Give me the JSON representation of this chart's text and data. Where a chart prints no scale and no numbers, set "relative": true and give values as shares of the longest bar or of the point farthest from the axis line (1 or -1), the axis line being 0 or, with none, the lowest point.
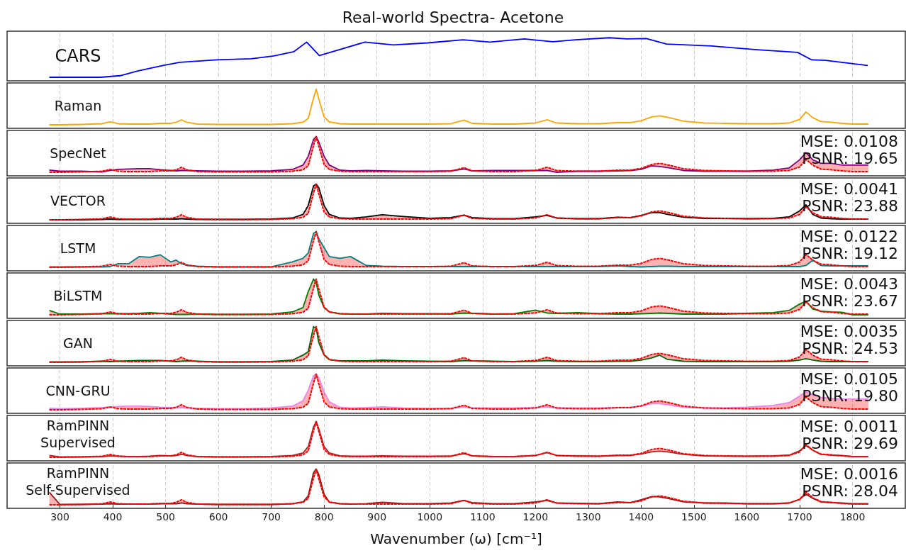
{
  "chart_data": [
    {
      "type": "line",
      "title": "Real-world Spectra- Acetone",
      "relative": true,
      "xlim": [
        200,
        1900
      ],
      "xticks": [
        300,
        400,
        500,
        600,
        700,
        800,
        900,
        1000,
        1100,
        1200,
        1300,
        1400,
        1500,
        1600,
        1700,
        1800
      ],
      "tick_labels": false,
      "grid": "x",
      "annotations": [
        "CARS"
      ],
      "x": [
        280,
        377,
        414,
        447,
        495,
        527,
        597,
        662,
        705,
        743,
        767,
        791,
        824,
        877,
        931,
        996,
        1063,
        1114,
        1179,
        1233,
        1276,
        1340,
        1373,
        1410,
        1448,
        1534,
        1615,
        1696,
        1723,
        1749,
        1829
      ],
      "series": [
        {
          "color": "#0000ff",
          "line_style": "solid",
          "values": [
            0,
            0,
            0.04,
            0.16,
            0.3,
            0.38,
            0.44,
            0.47,
            0.54,
            0.65,
            0.89,
            0.55,
            0.68,
            0.89,
            0.82,
            0.87,
            0.95,
            0.89,
            0.97,
            0.9,
            0.95,
            1,
            0.97,
            0.98,
            0.84,
            0.79,
            0.7,
            0.63,
            0.44,
            0.43,
            0.3
          ]
        }
      ]
    },
    {
      "type": "line",
      "relative": true,
      "xlim": [
        200,
        1900
      ],
      "xticks": [
        300,
        400,
        500,
        600,
        700,
        800,
        900,
        1000,
        1100,
        1200,
        1300,
        1400,
        1500,
        1600,
        1700,
        1800
      ],
      "tick_labels": false,
      "grid": "x",
      "annotations": [
        "Raman"
      ],
      "x": [
        280,
        300,
        340,
        380,
        395,
        410,
        430,
        450,
        470,
        490,
        510,
        520,
        530,
        540,
        560,
        600,
        650,
        700,
        740,
        760,
        770,
        780,
        785,
        790,
        800,
        810,
        830,
        850,
        880,
        910,
        950,
        1000,
        1040,
        1065,
        1080,
        1120,
        1160,
        1200,
        1222,
        1240,
        1280,
        1320,
        1355,
        1380,
        1400,
        1420,
        1435,
        1450,
        1480,
        1520,
        1560,
        1600,
        1650,
        1680,
        1700,
        1712,
        1725,
        1740,
        1760,
        1780,
        1800,
        1830
      ],
      "series": [
        {
          "color": "#ffa500",
          "line_style": "solid",
          "values": [
            0,
            0,
            0.01,
            0.03,
            0.08,
            0.03,
            0.02,
            0.02,
            0.02,
            0.04,
            0.04,
            0.07,
            0.14,
            0.07,
            0.02,
            0.01,
            0.01,
            0.01,
            0.03,
            0.07,
            0.18,
            0.75,
            1,
            0.72,
            0.22,
            0.08,
            0.03,
            0.02,
            0.02,
            0.02,
            0.02,
            0.02,
            0.03,
            0.13,
            0.04,
            0.02,
            0.02,
            0.05,
            0.14,
            0.05,
            0.03,
            0.03,
            0.06,
            0.06,
            0.11,
            0.22,
            0.25,
            0.21,
            0.1,
            0.05,
            0.04,
            0.03,
            0.03,
            0.05,
            0.15,
            0.36,
            0.2,
            0.09,
            0.07,
            0.04,
            0.02,
            0.02
          ]
        }
      ]
    },
    {
      "type": "line",
      "relative": true,
      "xlim": [
        200,
        1900
      ],
      "xticks": [
        300,
        400,
        500,
        600,
        700,
        800,
        900,
        1000,
        1100,
        1200,
        1300,
        1400,
        1500,
        1600,
        1700,
        1800
      ],
      "tick_labels": false,
      "grid": "x",
      "annotations": [
        "SpecNet",
        "MSE: 0.0108",
        "PSNR: 19.65"
      ],
      "x": [
        280,
        300,
        340,
        380,
        395,
        410,
        430,
        450,
        470,
        490,
        510,
        520,
        530,
        540,
        560,
        600,
        650,
        700,
        740,
        760,
        770,
        780,
        785,
        790,
        800,
        810,
        830,
        850,
        880,
        910,
        950,
        1000,
        1040,
        1065,
        1080,
        1120,
        1160,
        1200,
        1222,
        1240,
        1280,
        1320,
        1355,
        1380,
        1400,
        1420,
        1435,
        1450,
        1480,
        1520,
        1560,
        1600,
        1650,
        1680,
        1700,
        1712,
        1725,
        1740,
        1760,
        1780,
        1800,
        1830
      ],
      "series": [
        {
          "color": "#800080",
          "line_style": "solid",
          "values": [
            0.06,
            0.03,
            0.03,
            0.01,
            0.05,
            0.08,
            0.09,
            0.1,
            0.1,
            0.07,
            0.05,
            0.04,
            0.05,
            0.05,
            0.04,
            0.03,
            0.03,
            0.04,
            0.08,
            0.2,
            0.45,
            0.92,
            1,
            0.85,
            0.45,
            0.2,
            0.06,
            0.04,
            0.05,
            0.04,
            0.03,
            0.03,
            0.04,
            0.09,
            0.04,
            0.05,
            0.05,
            0.05,
            0.05,
            0,
            0.03,
            0.03,
            0.04,
            0.05,
            0.08,
            0.18,
            0.16,
            0.13,
            0.05,
            0.03,
            0.03,
            0.03,
            0.06,
            0.12,
            0.35,
            0.55,
            0.35,
            0.25,
            0.25,
            0.2,
            0.2,
            0.2
          ]
        },
        {
          "color": "#ff0000",
          "line_style": "dashed",
          "values": [
            0,
            0,
            0.01,
            0.03,
            0.08,
            0.03,
            0.02,
            0.02,
            0.02,
            0.04,
            0.04,
            0.07,
            0.14,
            0.07,
            0.02,
            0.01,
            0.01,
            0.01,
            0.03,
            0.07,
            0.18,
            0.75,
            1,
            0.72,
            0.22,
            0.08,
            0.03,
            0.02,
            0.02,
            0.02,
            0.02,
            0.02,
            0.03,
            0.13,
            0.04,
            0.02,
            0.02,
            0.05,
            0.14,
            0.05,
            0.03,
            0.03,
            0.06,
            0.06,
            0.11,
            0.22,
            0.25,
            0.21,
            0.1,
            0.05,
            0.04,
            0.03,
            0.03,
            0.05,
            0.15,
            0.36,
            0.2,
            0.09,
            0.07,
            0.04,
            0.02,
            0.02
          ]
        }
      ]
    },
    {
      "type": "line",
      "relative": true,
      "xlim": [
        200,
        1900
      ],
      "xticks": [
        300,
        400,
        500,
        600,
        700,
        800,
        900,
        1000,
        1100,
        1200,
        1300,
        1400,
        1500,
        1600,
        1700,
        1800
      ],
      "tick_labels": false,
      "grid": "x",
      "annotations": [
        "VECTOR",
        "MSE: 0.0041",
        "PSNR: 23.88"
      ],
      "x": [
        280,
        300,
        340,
        380,
        395,
        410,
        430,
        450,
        470,
        490,
        510,
        520,
        530,
        540,
        560,
        600,
        650,
        700,
        740,
        760,
        770,
        780,
        785,
        790,
        800,
        810,
        830,
        850,
        880,
        910,
        950,
        1000,
        1040,
        1065,
        1080,
        1120,
        1160,
        1200,
        1222,
        1240,
        1280,
        1320,
        1355,
        1380,
        1400,
        1420,
        1435,
        1450,
        1480,
        1520,
        1560,
        1600,
        1650,
        1680,
        1700,
        1712,
        1725,
        1740,
        1760,
        1780,
        1800,
        1830
      ],
      "series": [
        {
          "color": "#000000",
          "line_style": "solid",
          "values": [
            0,
            0,
            0,
            0.01,
            0.02,
            0.01,
            0.01,
            0.01,
            0.01,
            0.02,
            0.02,
            0.02,
            0.03,
            0.02,
            0.01,
            0.01,
            0.01,
            0.02,
            0.05,
            0.15,
            0.4,
            0.95,
            1,
            0.9,
            0.4,
            0.15,
            0.05,
            0.04,
            0.08,
            0.14,
            0.09,
            0.04,
            0.06,
            0.13,
            0.06,
            0.03,
            0.03,
            0.08,
            0.12,
            0.05,
            0.03,
            0.03,
            0.07,
            0.06,
            0.12,
            0.2,
            0.2,
            0.15,
            0.07,
            0.04,
            0.04,
            0.03,
            0.04,
            0.08,
            0.25,
            0.42,
            0.15,
            0.05,
            0.03,
            0.02,
            0.02,
            0.02
          ]
        },
        {
          "color": "#ff0000",
          "line_style": "dashed",
          "values": [
            0,
            0,
            0.01,
            0.03,
            0.08,
            0.03,
            0.02,
            0.02,
            0.02,
            0.04,
            0.04,
            0.07,
            0.14,
            0.07,
            0.02,
            0.01,
            0.01,
            0.01,
            0.03,
            0.07,
            0.18,
            0.75,
            1,
            0.72,
            0.22,
            0.08,
            0.03,
            0.02,
            0.02,
            0.02,
            0.02,
            0.02,
            0.03,
            0.13,
            0.04,
            0.02,
            0.02,
            0.05,
            0.14,
            0.05,
            0.03,
            0.03,
            0.06,
            0.06,
            0.11,
            0.22,
            0.25,
            0.21,
            0.1,
            0.05,
            0.04,
            0.03,
            0.03,
            0.05,
            0.15,
            0.36,
            0.2,
            0.09,
            0.07,
            0.04,
            0.02,
            0.02
          ]
        }
      ]
    },
    {
      "type": "line",
      "relative": true,
      "xlim": [
        200,
        1900
      ],
      "xticks": [
        300,
        400,
        500,
        600,
        700,
        800,
        900,
        1000,
        1100,
        1200,
        1300,
        1400,
        1500,
        1600,
        1700,
        1800
      ],
      "tick_labels": false,
      "grid": "x",
      "annotations": [
        "LSTM",
        "MSE: 0.0122",
        "PSNR: 19.12"
      ],
      "x": [
        280,
        300,
        340,
        380,
        395,
        410,
        430,
        450,
        470,
        490,
        510,
        520,
        530,
        540,
        560,
        600,
        650,
        700,
        740,
        760,
        770,
        780,
        785,
        790,
        800,
        810,
        830,
        850,
        880,
        910,
        950,
        1000,
        1040,
        1065,
        1080,
        1120,
        1160,
        1200,
        1222,
        1240,
        1280,
        1320,
        1355,
        1380,
        1400,
        1420,
        1435,
        1450,
        1480,
        1520,
        1560,
        1600,
        1650,
        1680,
        1700,
        1712,
        1725,
        1740,
        1760,
        1780,
        1800,
        1830
      ],
      "series": [
        {
          "color": "#008080",
          "line_style": "solid",
          "values": [
            0.01,
            0.01,
            0.01,
            0.01,
            0.02,
            0.1,
            0.1,
            0.3,
            0.28,
            0.35,
            0.15,
            0.2,
            0.1,
            0.05,
            0.03,
            0.01,
            0.01,
            0.01,
            0.15,
            0.25,
            0.4,
            0.95,
            1,
            0.8,
            0.55,
            0.3,
            0.25,
            0.3,
            0.05,
            0.03,
            0.02,
            0.02,
            0.02,
            0.02,
            0.02,
            0.02,
            0.02,
            0.02,
            0.02,
            0.02,
            0.02,
            0.02,
            0.04,
            0.02,
            0.01,
            0.02,
            0.03,
            0.03,
            0.02,
            0.02,
            0.02,
            0.02,
            0.02,
            0.02,
            0.02,
            0.05,
            0.2,
            0.05,
            0.04,
            0.04,
            0.04,
            0.04
          ]
        },
        {
          "color": "#ff0000",
          "line_style": "dashed",
          "values": [
            0,
            0,
            0.01,
            0.03,
            0.08,
            0.03,
            0.02,
            0.02,
            0.02,
            0.04,
            0.04,
            0.07,
            0.14,
            0.07,
            0.02,
            0.01,
            0.01,
            0.01,
            0.03,
            0.07,
            0.18,
            0.75,
            1,
            0.72,
            0.22,
            0.08,
            0.03,
            0.02,
            0.02,
            0.02,
            0.02,
            0.02,
            0.03,
            0.13,
            0.04,
            0.02,
            0.02,
            0.05,
            0.14,
            0.05,
            0.03,
            0.03,
            0.06,
            0.06,
            0.11,
            0.22,
            0.25,
            0.21,
            0.1,
            0.05,
            0.04,
            0.03,
            0.03,
            0.05,
            0.15,
            0.36,
            0.2,
            0.09,
            0.07,
            0.04,
            0.02,
            0.02
          ]
        }
      ]
    },
    {
      "type": "line",
      "relative": true,
      "xlim": [
        200,
        1900
      ],
      "xticks": [
        300,
        400,
        500,
        600,
        700,
        800,
        900,
        1000,
        1100,
        1200,
        1300,
        1400,
        1500,
        1600,
        1700,
        1800
      ],
      "tick_labels": false,
      "grid": "x",
      "annotations": [
        "BiLSTM",
        "MSE: 0.0043",
        "PSNR: 23.67"
      ],
      "x": [
        280,
        300,
        340,
        380,
        395,
        410,
        430,
        450,
        470,
        490,
        510,
        520,
        530,
        540,
        560,
        600,
        650,
        700,
        740,
        760,
        770,
        780,
        785,
        790,
        800,
        810,
        830,
        850,
        880,
        910,
        950,
        1000,
        1040,
        1065,
        1080,
        1120,
        1160,
        1200,
        1222,
        1240,
        1280,
        1320,
        1355,
        1380,
        1400,
        1420,
        1435,
        1450,
        1480,
        1520,
        1560,
        1600,
        1650,
        1680,
        1700,
        1712,
        1725,
        1740,
        1760,
        1780,
        1800,
        1830
      ],
      "series": [
        {
          "color": "#008000",
          "line_style": "solid",
          "values": [
            0.12,
            0.02,
            0.02,
            0.03,
            0.03,
            0.03,
            0.03,
            0.04,
            0.06,
            0.04,
            0.02,
            0.01,
            0.01,
            0.01,
            0.02,
            0.01,
            0.01,
            0.02,
            0.08,
            0.2,
            0.65,
            1,
            0.9,
            0.55,
            0.2,
            0.08,
            0.03,
            0.02,
            0.02,
            0.04,
            0.03,
            0.03,
            0.02,
            0.05,
            0.04,
            0.02,
            0.03,
            0.13,
            0.05,
            0.04,
            0.06,
            0.03,
            0.02,
            0.02,
            0.03,
            0.04,
            0.05,
            0.04,
            0.02,
            0.02,
            0.02,
            0.04,
            0.06,
            0.12,
            0.3,
            0.38,
            0.16,
            0.1,
            0.08,
            0.07,
            0,
            0
          ]
        },
        {
          "color": "#ff0000",
          "line_style": "dashed",
          "values": [
            0,
            0,
            0.01,
            0.03,
            0.08,
            0.03,
            0.02,
            0.02,
            0.02,
            0.04,
            0.04,
            0.07,
            0.14,
            0.07,
            0.02,
            0.01,
            0.01,
            0.01,
            0.03,
            0.07,
            0.18,
            0.75,
            1,
            0.72,
            0.22,
            0.08,
            0.03,
            0.02,
            0.02,
            0.02,
            0.02,
            0.02,
            0.03,
            0.13,
            0.04,
            0.02,
            0.02,
            0.05,
            0.14,
            0.05,
            0.03,
            0.03,
            0.06,
            0.06,
            0.11,
            0.22,
            0.25,
            0.21,
            0.1,
            0.05,
            0.04,
            0.03,
            0.03,
            0.05,
            0.15,
            0.36,
            0.2,
            0.09,
            0.07,
            0.04,
            0.02,
            0.02
          ]
        }
      ]
    },
    {
      "type": "line",
      "relative": true,
      "xlim": [
        200,
        1900
      ],
      "xticks": [
        300,
        400,
        500,
        600,
        700,
        800,
        900,
        1000,
        1100,
        1200,
        1300,
        1400,
        1500,
        1600,
        1700,
        1800
      ],
      "tick_labels": false,
      "grid": "x",
      "annotations": [
        "GAN",
        "MSE: 0.0035",
        "PSNR: 24.53"
      ],
      "x": [
        280,
        300,
        340,
        380,
        395,
        410,
        430,
        450,
        470,
        490,
        510,
        520,
        530,
        540,
        560,
        600,
        650,
        700,
        740,
        760,
        770,
        780,
        785,
        790,
        800,
        810,
        830,
        850,
        880,
        910,
        950,
        1000,
        1040,
        1065,
        1080,
        1120,
        1160,
        1200,
        1222,
        1240,
        1280,
        1320,
        1355,
        1380,
        1400,
        1420,
        1435,
        1450,
        1480,
        1520,
        1560,
        1600,
        1650,
        1680,
        1700,
        1712,
        1725,
        1740,
        1760,
        1780,
        1800,
        1830
      ],
      "series": [
        {
          "color": "#006400",
          "line_style": "solid",
          "values": [
            0.01,
            0.01,
            0.01,
            0.03,
            0.02,
            0.03,
            0.04,
            0.05,
            0.05,
            0.05,
            0.03,
            0.02,
            0.03,
            0.04,
            0.03,
            0.01,
            0.01,
            0.02,
            0.06,
            0.2,
            0.3,
            1,
            0.95,
            0.55,
            0.2,
            0.07,
            0.04,
            0.04,
            0.04,
            0.06,
            0.04,
            0.03,
            0.02,
            0.05,
            0.04,
            0.03,
            0.02,
            0.03,
            0.05,
            0.03,
            0.02,
            0.02,
            0.03,
            0.03,
            0.06,
            0.12,
            0.2,
            0.08,
            0.03,
            0.02,
            0.02,
            0.02,
            0.02,
            0.03,
            0.06,
            0.1,
            0.06,
            0.03,
            0.02,
            0.02,
            0.02,
            0.02
          ]
        },
        {
          "color": "#ff0000",
          "line_style": "dashed",
          "values": [
            0,
            0,
            0.01,
            0.03,
            0.08,
            0.03,
            0.02,
            0.02,
            0.02,
            0.04,
            0.04,
            0.07,
            0.14,
            0.07,
            0.02,
            0.01,
            0.01,
            0.01,
            0.03,
            0.07,
            0.18,
            0.75,
            1,
            0.72,
            0.22,
            0.08,
            0.03,
            0.02,
            0.02,
            0.02,
            0.02,
            0.02,
            0.03,
            0.13,
            0.04,
            0.02,
            0.02,
            0.05,
            0.14,
            0.05,
            0.03,
            0.03,
            0.06,
            0.06,
            0.11,
            0.22,
            0.25,
            0.21,
            0.1,
            0.05,
            0.04,
            0.03,
            0.03,
            0.05,
            0.15,
            0.36,
            0.2,
            0.09,
            0.07,
            0.04,
            0.02,
            0.02
          ]
        }
      ]
    },
    {
      "type": "line",
      "relative": true,
      "xlim": [
        200,
        1900
      ],
      "xticks": [
        300,
        400,
        500,
        600,
        700,
        800,
        900,
        1000,
        1100,
        1200,
        1300,
        1400,
        1500,
        1600,
        1700,
        1800
      ],
      "tick_labels": false,
      "grid": "x",
      "annotations": [
        "CNN-GRU",
        "MSE: 0.0105",
        "PSNR: 19.80"
      ],
      "x": [
        280,
        300,
        340,
        380,
        395,
        410,
        430,
        450,
        470,
        490,
        510,
        520,
        530,
        540,
        560,
        600,
        650,
        700,
        740,
        760,
        770,
        780,
        785,
        790,
        800,
        810,
        830,
        850,
        880,
        910,
        950,
        1000,
        1040,
        1065,
        1080,
        1120,
        1160,
        1200,
        1222,
        1240,
        1280,
        1320,
        1355,
        1380,
        1400,
        1420,
        1435,
        1450,
        1480,
        1520,
        1560,
        1600,
        1650,
        1680,
        1700,
        1712,
        1725,
        1740,
        1760,
        1780,
        1800,
        1830
      ],
      "series": [
        {
          "color": "#ee82ee",
          "line_style": "solid",
          "values": [
            0.04,
            0.03,
            0.04,
            0.06,
            0.08,
            0.09,
            0.1,
            0.1,
            0.09,
            0.07,
            0.06,
            0.05,
            0.06,
            0.05,
            0.04,
            0.03,
            0.03,
            0.05,
            0.1,
            0.25,
            0.55,
            0.95,
            1,
            0.9,
            0.5,
            0.22,
            0.07,
            0.05,
            0.06,
            0.08,
            0.05,
            0.04,
            0.04,
            0.08,
            0.05,
            0.05,
            0.05,
            0.06,
            0.08,
            0.05,
            0.05,
            0.05,
            0.06,
            0.07,
            0.1,
            0.17,
            0.17,
            0.14,
            0.07,
            0.05,
            0.05,
            0.07,
            0.12,
            0.2,
            0.38,
            0.5,
            0.42,
            0.35,
            0.32,
            0.3,
            0.3,
            0.3
          ]
        },
        {
          "color": "#ff0000",
          "line_style": "dashed",
          "values": [
            0,
            0,
            0.01,
            0.03,
            0.08,
            0.03,
            0.02,
            0.02,
            0.02,
            0.04,
            0.04,
            0.07,
            0.14,
            0.07,
            0.02,
            0.01,
            0.01,
            0.01,
            0.03,
            0.07,
            0.18,
            0.75,
            1,
            0.72,
            0.22,
            0.08,
            0.03,
            0.02,
            0.02,
            0.02,
            0.02,
            0.02,
            0.03,
            0.13,
            0.04,
            0.02,
            0.02,
            0.05,
            0.14,
            0.05,
            0.03,
            0.03,
            0.06,
            0.06,
            0.11,
            0.22,
            0.25,
            0.21,
            0.1,
            0.05,
            0.04,
            0.03,
            0.03,
            0.05,
            0.15,
            0.36,
            0.2,
            0.09,
            0.07,
            0.04,
            0.02,
            0.02
          ]
        }
      ]
    },
    {
      "type": "line",
      "relative": true,
      "xlim": [
        200,
        1900
      ],
      "xticks": [
        300,
        400,
        500,
        600,
        700,
        800,
        900,
        1000,
        1100,
        1200,
        1300,
        1400,
        1500,
        1600,
        1700,
        1800
      ],
      "tick_labels": false,
      "grid": "x",
      "annotations": [
        "RamPINN\nSupervised",
        "MSE: 0.0011",
        "PSNR: 29.69"
      ],
      "x": [
        280,
        300,
        340,
        380,
        395,
        410,
        430,
        450,
        470,
        490,
        510,
        520,
        530,
        540,
        560,
        600,
        650,
        700,
        740,
        760,
        770,
        780,
        785,
        790,
        800,
        810,
        830,
        850,
        880,
        910,
        950,
        1000,
        1040,
        1065,
        1080,
        1120,
        1160,
        1200,
        1222,
        1240,
        1280,
        1320,
        1355,
        1380,
        1400,
        1420,
        1435,
        1450,
        1480,
        1520,
        1560,
        1600,
        1650,
        1680,
        1700,
        1712,
        1725,
        1740,
        1760,
        1780,
        1800,
        1830
      ],
      "series": [
        {
          "color": "#a52a2a",
          "line_style": "solid",
          "values": [
            0.05,
            0.01,
            0.01,
            0.02,
            0.04,
            0.03,
            0.02,
            0.02,
            0.03,
            0.05,
            0.04,
            0.05,
            0.08,
            0.05,
            0.02,
            0.01,
            0.01,
            0.02,
            0.05,
            0.12,
            0.3,
            0.85,
            1,
            0.8,
            0.3,
            0.12,
            0.04,
            0.03,
            0.03,
            0.04,
            0.03,
            0.03,
            0.03,
            0.1,
            0.04,
            0.02,
            0.02,
            0.05,
            0.13,
            0.05,
            0.04,
            0.03,
            0.05,
            0.05,
            0.09,
            0.15,
            0.17,
            0.15,
            0.08,
            0.04,
            0.03,
            0.03,
            0.04,
            0.06,
            0.18,
            0.33,
            0.2,
            0.08,
            0.06,
            0.05,
            0.02,
            0.02
          ]
        },
        {
          "color": "#ff0000",
          "line_style": "dashed",
          "values": [
            0,
            0,
            0.01,
            0.03,
            0.08,
            0.03,
            0.02,
            0.02,
            0.02,
            0.04,
            0.04,
            0.07,
            0.14,
            0.07,
            0.02,
            0.01,
            0.01,
            0.01,
            0.03,
            0.07,
            0.18,
            0.75,
            1,
            0.72,
            0.22,
            0.08,
            0.03,
            0.02,
            0.02,
            0.02,
            0.02,
            0.02,
            0.03,
            0.13,
            0.04,
            0.02,
            0.02,
            0.05,
            0.14,
            0.05,
            0.03,
            0.03,
            0.06,
            0.06,
            0.11,
            0.22,
            0.25,
            0.21,
            0.1,
            0.05,
            0.04,
            0.03,
            0.03,
            0.05,
            0.15,
            0.36,
            0.2,
            0.09,
            0.07,
            0.04,
            0.02,
            0.02
          ]
        }
      ]
    },
    {
      "type": "line",
      "relative": true,
      "xlim": [
        200,
        1900
      ],
      "xticks": [
        300,
        400,
        500,
        600,
        700,
        800,
        900,
        1000,
        1100,
        1200,
        1300,
        1400,
        1500,
        1600,
        1700,
        1800
      ],
      "tick_labels": "x",
      "grid": "x",
      "xlabel": "Wavenumber (ω) [cm⁻¹]",
      "annotations": [
        "RamPINN\nSelf-Supervised",
        "MSE: 0.0016",
        "PSNR: 28.04"
      ],
      "x": [
        280,
        300,
        340,
        380,
        395,
        410,
        430,
        450,
        470,
        490,
        510,
        520,
        530,
        540,
        560,
        600,
        650,
        700,
        740,
        760,
        770,
        780,
        785,
        790,
        800,
        810,
        830,
        850,
        880,
        910,
        950,
        1000,
        1040,
        1065,
        1080,
        1120,
        1160,
        1200,
        1222,
        1240,
        1280,
        1320,
        1355,
        1380,
        1400,
        1420,
        1435,
        1450,
        1480,
        1520,
        1560,
        1600,
        1650,
        1680,
        1700,
        1712,
        1725,
        1740,
        1760,
        1780,
        1800,
        1830
      ],
      "series": [
        {
          "color": "#8b1a1a",
          "line_style": "solid",
          "values": [
            0.35,
            0.01,
            0.01,
            0.02,
            0.03,
            0.02,
            0.02,
            0.02,
            0.02,
            0.03,
            0.03,
            0.03,
            0.05,
            0.03,
            0.02,
            0.01,
            0.01,
            0.01,
            0.03,
            0.08,
            0.25,
            0.9,
            1,
            0.85,
            0.3,
            0.07,
            0.03,
            0.02,
            0.03,
            0.07,
            0.03,
            0.03,
            0.05,
            0.12,
            0.06,
            0.03,
            0.03,
            0.08,
            0.12,
            0.05,
            0.04,
            0.03,
            0.08,
            0.06,
            0.14,
            0.23,
            0.22,
            0.18,
            0.08,
            0.05,
            0.05,
            0.03,
            0.03,
            0.05,
            0.15,
            0.3,
            0.18,
            0.08,
            0.06,
            0.05,
            0.03,
            0.03
          ]
        },
        {
          "color": "#ff0000",
          "line_style": "dashed",
          "values": [
            0,
            0,
            0.01,
            0.03,
            0.08,
            0.03,
            0.02,
            0.02,
            0.02,
            0.04,
            0.04,
            0.07,
            0.14,
            0.07,
            0.02,
            0.01,
            0.01,
            0.01,
            0.03,
            0.07,
            0.18,
            0.75,
            1,
            0.72,
            0.22,
            0.08,
            0.03,
            0.02,
            0.02,
            0.02,
            0.02,
            0.02,
            0.03,
            0.13,
            0.04,
            0.02,
            0.02,
            0.05,
            0.14,
            0.05,
            0.03,
            0.03,
            0.06,
            0.06,
            0.11,
            0.22,
            0.25,
            0.21,
            0.1,
            0.05,
            0.04,
            0.03,
            0.03,
            0.05,
            0.15,
            0.36,
            0.2,
            0.09,
            0.07,
            0.04,
            0.02,
            0.02
          ]
        }
      ]
    }
  ]
}
